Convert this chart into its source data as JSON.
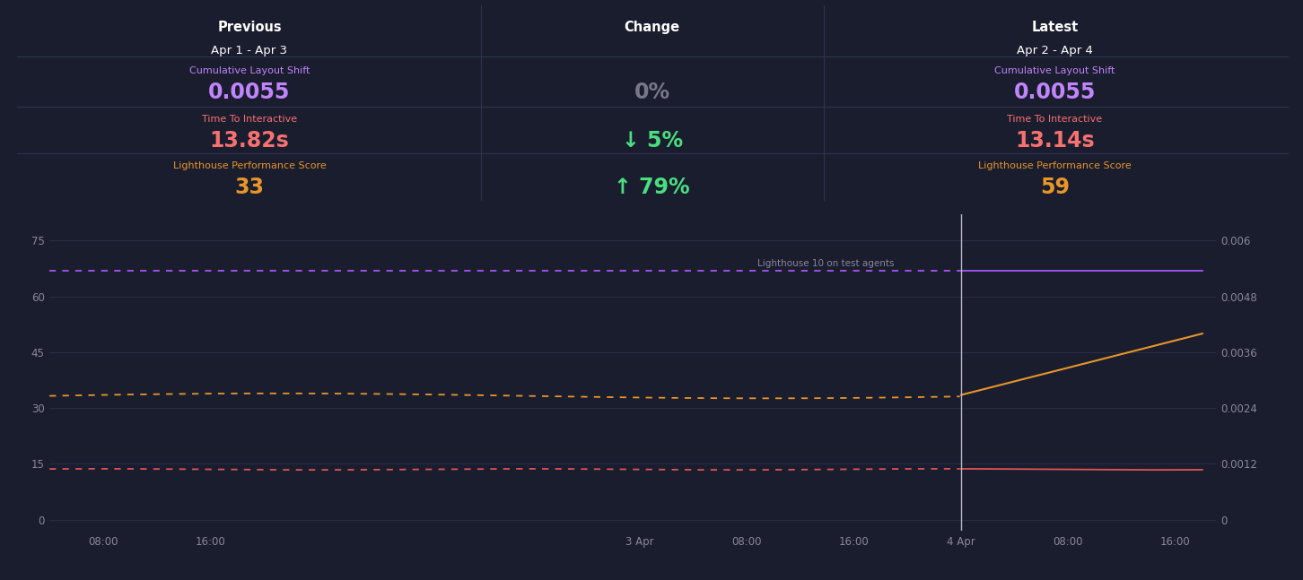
{
  "bg_color": "#1a1d2e",
  "panel_bg": "#1e2235",
  "border_color": "#2e3350",
  "text_white": "#ffffff",
  "text_gray": "#888899",
  "purple_color": "#b06fd8",
  "orange_color": "#e8952a",
  "red_color": "#e06060",
  "green_color": "#4ade80",
  "title_left": "Previous",
  "date_left": "Apr 1 - Apr 3",
  "title_center": "Change",
  "title_right": "Latest",
  "date_right": "Apr 2 - Apr 4",
  "row1_label": "Cumulative Layout Shift",
  "row1_left_val": "0.0055",
  "row1_change": "0%",
  "row1_right_val": "0.0055",
  "row2_label": "Time To Interactive",
  "row2_left_val": "13.82s",
  "row2_change": "↓ 5%",
  "row2_right_val": "13.14s",
  "row3_label": "Lighthouse Performance Score",
  "row3_left_val": "33",
  "row3_change": "↑ 79%",
  "row3_right_val": "59",
  "row1_left_color": "#c084fc",
  "row1_right_color": "#c084fc",
  "row2_left_color": "#f87171",
  "row2_right_color": "#f87171",
  "row3_left_color": "#e8952a",
  "row3_right_color": "#e8952a",
  "row1_change_color": "#777788",
  "row2_change_color": "#4ade80",
  "row3_change_color": "#4ade80",
  "yticks_left": [
    0,
    15,
    30,
    45,
    60,
    75
  ],
  "yticks_right": [
    "0",
    "0.0012",
    "0.0024",
    "0.0036",
    "0.0048",
    "0.006"
  ],
  "xtick_labels": [
    "08:00",
    "16:00",
    "3 Apr",
    "08:00",
    "16:00",
    "4 Apr",
    "08:00",
    "16:00"
  ],
  "legend_label": "Lighthouse 10 on test agents"
}
